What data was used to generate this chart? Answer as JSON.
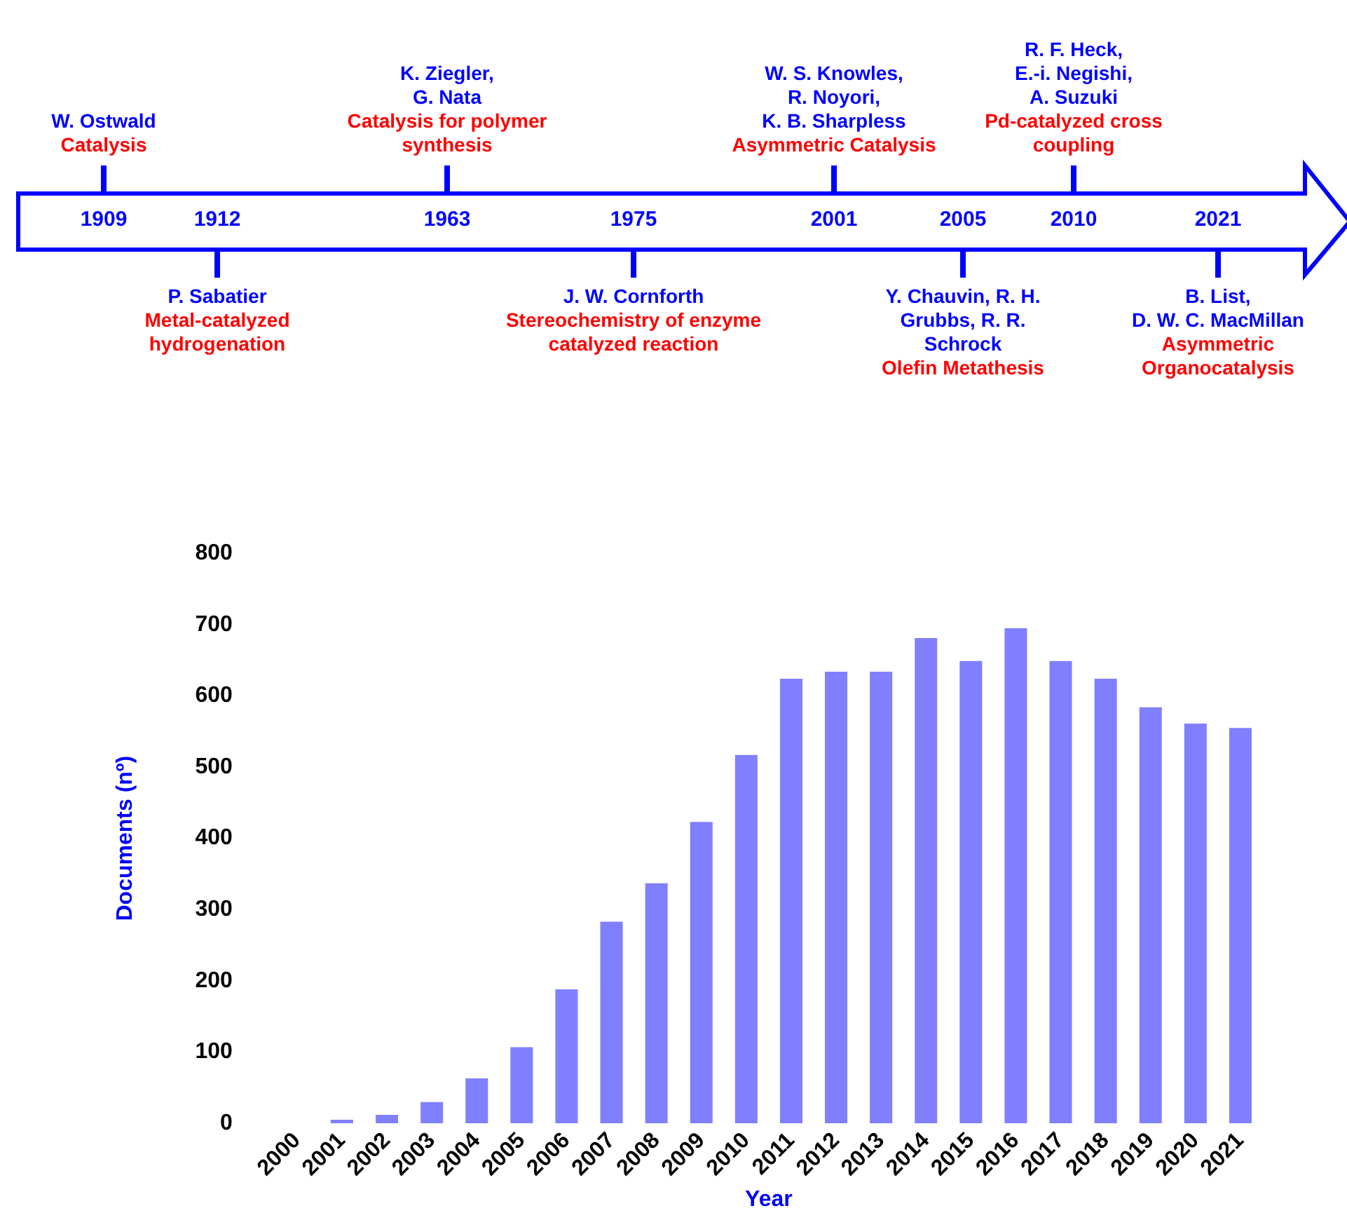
{
  "chart_data": [
    {
      "type": "other",
      "categories": [
        "1909",
        "1912",
        "1963",
        "1975",
        "2001",
        "2005",
        "2010",
        "2021"
      ],
      "annotations": [
        "W. Ostwald",
        "Catalysis",
        "P. Sabatier",
        "Metal-catalyzed\nhydrogenation",
        "K. Ziegler,\nG. Nata",
        "Catalysis for polymer\nsynthesis",
        "J. W. Cornforth",
        "Stereochemistry of enzyme\ncatalyzed reaction",
        "W. S. Knowles,\nR. Noyori,\nK. B. Sharpless",
        "Asymmetric Catalysis",
        "Y. Chauvin, R. H.\nGrubbs, R. R.\nSchrock",
        "Olefin Metathesis",
        "R. F. Heck,\nE.-i. Negishi,\nA. Suzuki",
        "Pd-catalyzed cross\ncoupling",
        "B. List,\nD. W. C. MacMillan",
        "Asymmetric\nOrganocatalysis"
      ]
    },
    {
      "type": "bar",
      "xlabel": "Year",
      "ylabel": "Documents (nº)",
      "color": "#8080ff",
      "categories": [
        "2000",
        "2001",
        "2002",
        "2003",
        "2004",
        "2005",
        "2006",
        "2007",
        "2008",
        "2009",
        "2010",
        "2011",
        "2012",
        "2013",
        "2014",
        "2015",
        "2016",
        "2017",
        "2018",
        "2019",
        "2020",
        "2021"
      ],
      "values": [
        0,
        5,
        12,
        30,
        63,
        107,
        188,
        283,
        337,
        423,
        517,
        624,
        634,
        634,
        681,
        649,
        695,
        649,
        624,
        584,
        561,
        555
      ],
      "ylim": [
        0,
        800
      ],
      "yticks": [
        0,
        100,
        200,
        300,
        400,
        500,
        600,
        700,
        800
      ],
      "grid": false,
      "legend": false
    }
  ]
}
